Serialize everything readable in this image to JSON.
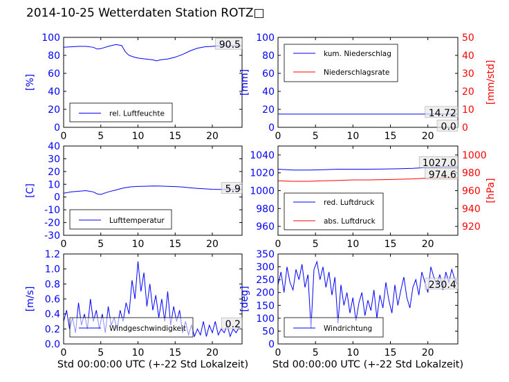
{
  "figure": {
    "title": "2014-10-25 Wetterdaten Station ROTZ□"
  },
  "colors": {
    "left_axis": "#0000ff",
    "right_axis": "#ff0000",
    "series_blue": "#0000ff",
    "series_red": "#ff0000"
  },
  "chart_data": [
    {
      "id": "humidity",
      "type": "line",
      "xlabel": "",
      "ylabel": "[%]",
      "xlim": [
        0,
        24
      ],
      "ylim": [
        0,
        100
      ],
      "xticks": [
        0,
        5,
        10,
        15,
        20
      ],
      "yticks": [
        0,
        20,
        40,
        60,
        80,
        100
      ],
      "legend": {
        "placement": "lower-left",
        "entries": [
          "rel. Luftfeuchte"
        ]
      },
      "annotations": [
        "90.5"
      ],
      "series": [
        {
          "name": "rel. Luftfeuchte",
          "color": "#0000ff",
          "x": [
            0,
            1,
            2,
            3,
            4,
            4.5,
            5,
            6,
            7,
            7.8,
            8.3,
            8.8,
            9.5,
            10,
            11,
            12,
            12.5,
            13,
            14,
            15,
            16,
            17,
            18,
            19,
            20,
            21,
            22,
            23,
            24
          ],
          "y": [
            89,
            89.5,
            90,
            90,
            89,
            87,
            87.5,
            90,
            92,
            91,
            84,
            80,
            78,
            77,
            76,
            75,
            74,
            75,
            76,
            78,
            81,
            85,
            88,
            89.5,
            90,
            90.5,
            90.5,
            90.5,
            90.5
          ]
        }
      ]
    },
    {
      "id": "precipitation",
      "type": "line",
      "xlabel": "",
      "ylabel": "[mm]",
      "ylabel_right": "[mm/std]",
      "xlim": [
        0,
        24
      ],
      "ylim": [
        0,
        100
      ],
      "ylim_right": [
        0,
        50
      ],
      "xticks": [
        0,
        5,
        10,
        15,
        20
      ],
      "yticks": [
        0,
        20,
        40,
        60,
        80,
        100
      ],
      "yticks_right": [
        0,
        10,
        20,
        30,
        40,
        50
      ],
      "legend": {
        "placement": "top-left",
        "entries": [
          "kum. Niederschlag",
          "Niederschlagsrate"
        ]
      },
      "annotations": [
        "14.72",
        "0.0"
      ],
      "series": [
        {
          "name": "kum. Niederschlag",
          "axis": "left",
          "color": "#0000ff",
          "x": [
            0,
            24
          ],
          "y": [
            14.72,
            14.72
          ]
        },
        {
          "name": "Niederschlagsrate",
          "axis": "right",
          "color": "#ff0000",
          "x": [
            0,
            24
          ],
          "y": [
            0.0,
            0.0
          ]
        }
      ]
    },
    {
      "id": "temperature",
      "type": "line",
      "xlabel": "",
      "ylabel": "[C]",
      "xlim": [
        0,
        24
      ],
      "ylim": [
        -30,
        40
      ],
      "xticks": [
        0,
        5,
        10,
        15,
        20
      ],
      "yticks": [
        -30,
        -20,
        -10,
        0,
        10,
        20,
        30,
        40
      ],
      "legend": {
        "placement": "lower-left",
        "entries": [
          "Lufttemperatur"
        ]
      },
      "annotations": [
        "5.9"
      ],
      "series": [
        {
          "name": "Lufttemperatur",
          "color": "#0000ff",
          "x": [
            0,
            1,
            2,
            3,
            4,
            4.5,
            5,
            6,
            7,
            8,
            9,
            10,
            11,
            12,
            13,
            14,
            15,
            16,
            17,
            18,
            19,
            20,
            21,
            22,
            23,
            24
          ],
          "y": [
            3,
            4,
            4.5,
            5,
            4,
            2.5,
            2,
            4,
            5.5,
            7,
            8,
            8.3,
            8.5,
            8.7,
            8.6,
            8.4,
            8.2,
            7.8,
            7.2,
            6.8,
            6.4,
            6.1,
            5.9,
            5.9,
            5.9,
            5.9
          ]
        }
      ]
    },
    {
      "id": "pressure",
      "type": "line",
      "xlabel": "",
      "ylabel": "",
      "ylabel_right": "[hPa]",
      "xlim": [
        0,
        24
      ],
      "ylim": [
        950,
        1050
      ],
      "ylim_right": [
        910,
        1010
      ],
      "xticks": [
        0,
        5,
        10,
        15,
        20
      ],
      "yticks": [
        960,
        980,
        1000,
        1020,
        1040
      ],
      "yticks_right": [
        920,
        940,
        960,
        980,
        1000
      ],
      "legend": {
        "placement": "lower-left",
        "entries": [
          "red. Luftdruck",
          "abs. Luftdruck"
        ]
      },
      "annotations": [
        "1027.0",
        "974.6"
      ],
      "series": [
        {
          "name": "red. Luftdruck",
          "axis": "left",
          "color": "#0000ff",
          "x": [
            0,
            2,
            4,
            6,
            8,
            10,
            12,
            14,
            16,
            18,
            20,
            22,
            24
          ],
          "y": [
            1024,
            1023,
            1023,
            1023.5,
            1024,
            1024,
            1024,
            1024.2,
            1024.5,
            1025,
            1026,
            1027,
            1027
          ]
        },
        {
          "name": "abs. Luftdruck",
          "axis": "right",
          "color": "#ff0000",
          "x": [
            0,
            2,
            4,
            6,
            8,
            10,
            12,
            14,
            16,
            18,
            20,
            22,
            24
          ],
          "y": [
            971,
            970.5,
            970.5,
            971,
            971.5,
            972,
            972,
            972.3,
            972.7,
            973.2,
            974,
            974.6,
            974.6
          ]
        }
      ]
    },
    {
      "id": "windspeed",
      "type": "line",
      "xlabel": "Std 00:00:00 UTC (+-22 Std Lokalzeit)",
      "ylabel": "[m/s]",
      "xlim": [
        0,
        24
      ],
      "ylim": [
        0,
        1.2
      ],
      "xticks": [
        0,
        5,
        10,
        15,
        20
      ],
      "yticks": [
        0.0,
        0.2,
        0.4,
        0.6,
        0.8,
        1.0,
        1.2
      ],
      "legend": {
        "placement": "lower-left",
        "entries": [
          "Windgeschwindigkeit"
        ]
      },
      "annotations": [
        "0.2"
      ],
      "series": [
        {
          "name": "Windgeschwindigkeit",
          "color": "#0000ff",
          "x": [
            0,
            0.4,
            0.8,
            1.2,
            1.6,
            2.0,
            2.4,
            2.8,
            3.2,
            3.6,
            4.0,
            4.4,
            4.8,
            5.2,
            5.6,
            6.0,
            6.4,
            6.8,
            7.2,
            7.6,
            8.0,
            8.4,
            8.8,
            9.2,
            9.6,
            10.0,
            10.4,
            10.8,
            11.2,
            11.6,
            12.0,
            12.4,
            12.8,
            13.2,
            13.6,
            14.0,
            14.4,
            14.8,
            15.2,
            15.6,
            16.0,
            16.4,
            16.8,
            17.2,
            17.6,
            18.0,
            18.4,
            18.8,
            19.2,
            19.6,
            20.0,
            20.4,
            20.8,
            21.2,
            21.6,
            22.0,
            22.4,
            22.8,
            23.2,
            23.6,
            24.0
          ],
          "y": [
            0.3,
            0.45,
            0.2,
            0.35,
            0.15,
            0.55,
            0.25,
            0.4,
            0.2,
            0.6,
            0.3,
            0.45,
            0.2,
            0.4,
            0.15,
            0.5,
            0.25,
            0.35,
            0.2,
            0.45,
            0.3,
            0.55,
            0.4,
            0.85,
            0.6,
            1.1,
            0.7,
            0.95,
            0.5,
            0.8,
            0.45,
            0.65,
            0.35,
            0.6,
            0.3,
            0.7,
            0.25,
            0.5,
            0.3,
            0.45,
            0.15,
            0.3,
            0.12,
            0.25,
            0.1,
            0.2,
            0.12,
            0.3,
            0.1,
            0.25,
            0.15,
            0.3,
            0.12,
            0.2,
            0.15,
            0.25,
            0.1,
            0.2,
            0.15,
            0.22,
            0.2
          ]
        }
      ]
    },
    {
      "id": "winddirection",
      "type": "line",
      "xlabel": "Std 00:00:00 UTC (+-22 Std Lokalzeit)",
      "ylabel": "[deg]",
      "xlim": [
        0,
        24
      ],
      "ylim": [
        0,
        350
      ],
      "xticks": [
        0,
        5,
        10,
        15,
        20
      ],
      "yticks": [
        0,
        50,
        100,
        150,
        200,
        250,
        300,
        350
      ],
      "legend": {
        "placement": "lower-left",
        "entries": [
          "Windrichtung"
        ]
      },
      "annotations": [
        "230.4"
      ],
      "series": [
        {
          "name": "Windrichtung",
          "color": "#0000ff",
          "x": [
            0,
            0.4,
            0.8,
            1.2,
            1.6,
            2.0,
            2.4,
            2.8,
            3.2,
            3.6,
            4.0,
            4.4,
            4.8,
            5.2,
            5.6,
            6.0,
            6.4,
            6.8,
            7.2,
            7.6,
            8.0,
            8.4,
            8.8,
            9.2,
            9.6,
            10.0,
            10.4,
            10.8,
            11.2,
            11.6,
            12.0,
            12.4,
            12.8,
            13.2,
            13.6,
            14.0,
            14.4,
            14.8,
            15.2,
            15.6,
            16.0,
            16.4,
            16.8,
            17.2,
            17.6,
            18.0,
            18.4,
            18.8,
            19.2,
            19.6,
            20.0,
            20.4,
            20.8,
            21.2,
            21.6,
            22.0,
            22.4,
            22.8,
            23.2,
            23.6,
            24.0
          ],
          "y": [
            230,
            280,
            200,
            300,
            240,
            210,
            290,
            250,
            310,
            220,
            270,
            60,
            290,
            320,
            250,
            300,
            220,
            280,
            190,
            260,
            80,
            230,
            150,
            200,
            120,
            180,
            90,
            160,
            200,
            110,
            170,
            130,
            210,
            100,
            190,
            140,
            240,
            170,
            120,
            230,
            150,
            210,
            260,
            180,
            140,
            220,
            250,
            190,
            280,
            240,
            200,
            300,
            260,
            230,
            270,
            210,
            280,
            240,
            290,
            250,
            230
          ]
        }
      ]
    }
  ]
}
